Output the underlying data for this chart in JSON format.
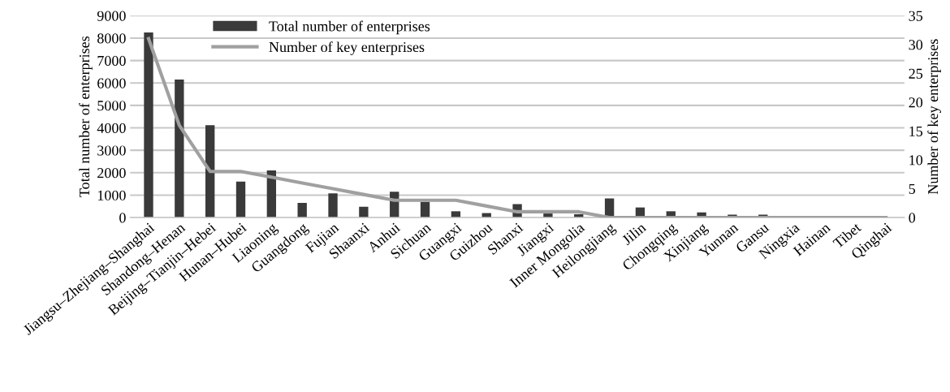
{
  "chart_data": {
    "type": "bar",
    "ylabel": "Total number of enterprises",
    "y2label": "Number of key enterprises",
    "categories": [
      "Jiangsu–Zhejiang–Shanghai",
      "Shandong–Henan",
      "Beijing–Tianjin–Hebei",
      "Hunan–Hubei",
      "Liaoning",
      "Guangdong",
      "Fujian",
      "Shaanxi",
      "Anhui",
      "Sichuan",
      "Guangxi",
      "Guizhou",
      "Shanxi",
      "Jiangxi",
      "Inner Mongolia",
      "Heilongjiang",
      "Jilin",
      "Chongqing",
      "Xinjiang",
      "Yunnan",
      "Gansu",
      "Ningxia",
      "Hainan",
      "Tibet",
      "Qinghai"
    ],
    "series": [
      {
        "name": "Total number of enterprises",
        "color": "#3a3a3a",
        "values": [
          8250,
          6150,
          4120,
          1600,
          2100,
          650,
          1080,
          480,
          1150,
          700,
          280,
          200,
          600,
          180,
          150,
          850,
          450,
          280,
          230,
          130,
          130,
          0,
          0,
          0,
          0
        ]
      },
      {
        "name": "Number of key enterprises",
        "type": "line",
        "axis": "y2",
        "color": "#a0a0a0",
        "values": [
          31,
          16,
          8,
          8,
          7,
          6,
          5,
          4,
          3,
          3,
          3,
          2,
          1,
          1,
          1,
          0,
          0,
          0,
          0,
          0,
          0,
          0,
          0,
          0,
          0
        ]
      }
    ],
    "ylim": [
      0,
      9000
    ],
    "yticks": [
      0,
      1000,
      2000,
      3000,
      4000,
      5000,
      6000,
      7000,
      8000,
      9000
    ],
    "y2lim": [
      0,
      35
    ],
    "y2ticks": [
      0,
      5,
      10,
      15,
      20,
      25,
      30,
      35
    ],
    "grid": "y",
    "legend": "top left",
    "marker": "none",
    "line_style": "solid"
  }
}
